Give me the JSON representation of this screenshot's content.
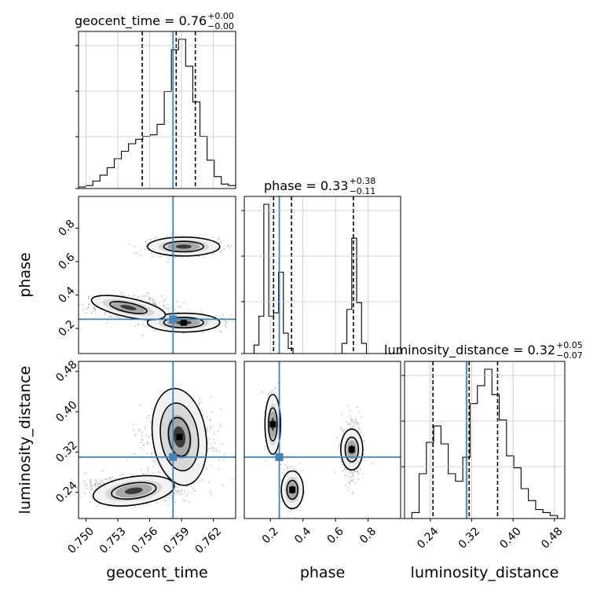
{
  "chart_data": {
    "type": "corner",
    "parameters": [
      "geocent_time",
      "phase",
      "luminosity_distance"
    ],
    "truth": {
      "geocent_time": 0.7582,
      "phase": 0.255,
      "luminosity_distance": 0.31
    },
    "colors": {
      "truth": "#4682b4",
      "lines": "#000000",
      "grid": "#c8c8c8"
    },
    "grid": true,
    "titles": [
      {
        "param": "geocent_time",
        "label": "geocent_time = 0.76",
        "plus": "+0.00",
        "minus": "−0.00"
      },
      {
        "param": "phase",
        "label": "phase = 0.33",
        "plus": "+0.38",
        "minus": "−0.11"
      },
      {
        "param": "luminosity_distance",
        "label": "luminosity_distance = 0.32",
        "plus": "+0.05",
        "minus": "−0.07"
      }
    ],
    "xlabels": [
      "geocent_time",
      "phase",
      "luminosity_distance"
    ],
    "ylabels": [
      "",
      "phase",
      "luminosity_distance"
    ],
    "ticks": {
      "geocent_time": [
        "0.750",
        "0.753",
        "0.756",
        "0.759",
        "0.762"
      ],
      "phase": [
        "0.2",
        "0.4",
        "0.6",
        "0.8"
      ],
      "luminosity_distance": [
        "0.24",
        "0.32",
        "0.40",
        "0.48"
      ]
    },
    "histograms": [
      {
        "param": "geocent_time",
        "range": [
          0.7493,
          0.7641
        ],
        "quantiles": [
          0.7553,
          0.7585,
          0.7603
        ],
        "counts": [
          0.01,
          0.02,
          0.05,
          0.09,
          0.14,
          0.2,
          0.25,
          0.3,
          0.33,
          0.35,
          0.36,
          0.43,
          0.65,
          0.93,
          1.0,
          0.82,
          0.58,
          0.35,
          0.19,
          0.08,
          0.03,
          0.02
        ]
      },
      {
        "param": "phase",
        "range": [
          0.04,
          1.0
        ],
        "quantiles": [
          0.22,
          0.33,
          0.71
        ],
        "counts": [
          0.0,
          0.0,
          0.05,
          0.22,
          0.88,
          0.22,
          0.24,
          0.48,
          0.12,
          0.03,
          0.0,
          0.0,
          0.0,
          0.0,
          0.0,
          0.0,
          0.0,
          0.0,
          0.0,
          0.0,
          0.06,
          0.26,
          0.68,
          0.3,
          0.06,
          0.0,
          0.0,
          0.0,
          0.0,
          0.0,
          0.0,
          0.0
        ]
      },
      {
        "param": "luminosity_distance",
        "range": [
          0.19,
          0.5
        ],
        "quantiles": [
          0.245,
          0.315,
          0.37
        ],
        "counts": [
          0.0,
          0.04,
          0.3,
          0.51,
          0.62,
          0.5,
          0.3,
          0.25,
          0.41,
          0.77,
          0.89,
          1.0,
          0.83,
          0.66,
          0.42,
          0.34,
          0.2,
          0.12,
          0.06,
          0.04,
          0.02,
          0.0
        ]
      }
    ]
  }
}
